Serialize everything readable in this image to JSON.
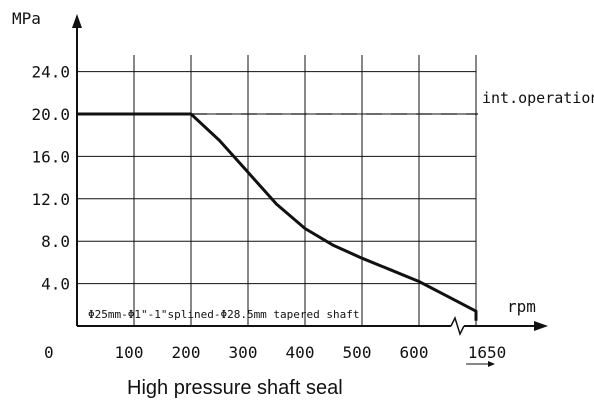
{
  "chart_data": {
    "type": "line",
    "title": "High pressure shaft seal",
    "ylabel": "MPa",
    "xlabel": "rpm",
    "ylim": [
      0,
      24
    ],
    "yticks": [
      {
        "value": 4,
        "label": "4.0"
      },
      {
        "value": 8,
        "label": "8.0"
      },
      {
        "value": 12,
        "label": "12.0"
      },
      {
        "value": 16,
        "label": "16.0"
      },
      {
        "value": 20,
        "label": "20.0"
      },
      {
        "value": 24,
        "label": "24.0"
      }
    ],
    "y_zero_label": "0",
    "xticks": [
      {
        "value": 100,
        "label": "100"
      },
      {
        "value": 200,
        "label": "200"
      },
      {
        "value": 300,
        "label": "300"
      },
      {
        "value": 400,
        "label": "400"
      },
      {
        "value": 500,
        "label": "500"
      },
      {
        "value": 600,
        "label": "600"
      }
    ],
    "x_break": {
      "after": 700,
      "end_label": "1650",
      "end_value": 1650
    },
    "series": [
      {
        "values": [
          [
            0,
            20
          ],
          [
            200,
            20
          ],
          [
            250,
            17.5
          ],
          [
            300,
            14.5
          ],
          [
            350,
            11.5
          ],
          [
            400,
            9.2
          ],
          [
            450,
            7.6
          ],
          [
            500,
            6.4
          ],
          [
            550,
            5.3
          ],
          [
            600,
            4.2
          ],
          [
            650,
            2.8
          ],
          [
            700,
            1.4
          ],
          [
            1650,
            0.5
          ]
        ]
      }
    ],
    "reference_line": {
      "y": 20,
      "x_from": 200,
      "label": "int.operation",
      "style": "dashed"
    },
    "annotation": "Φ25mm-Φ1\"-1\"splined-Φ28.5mm tapered shaft",
    "grid": true,
    "colors": {
      "line": "#111111",
      "grid": "#111111"
    }
  }
}
